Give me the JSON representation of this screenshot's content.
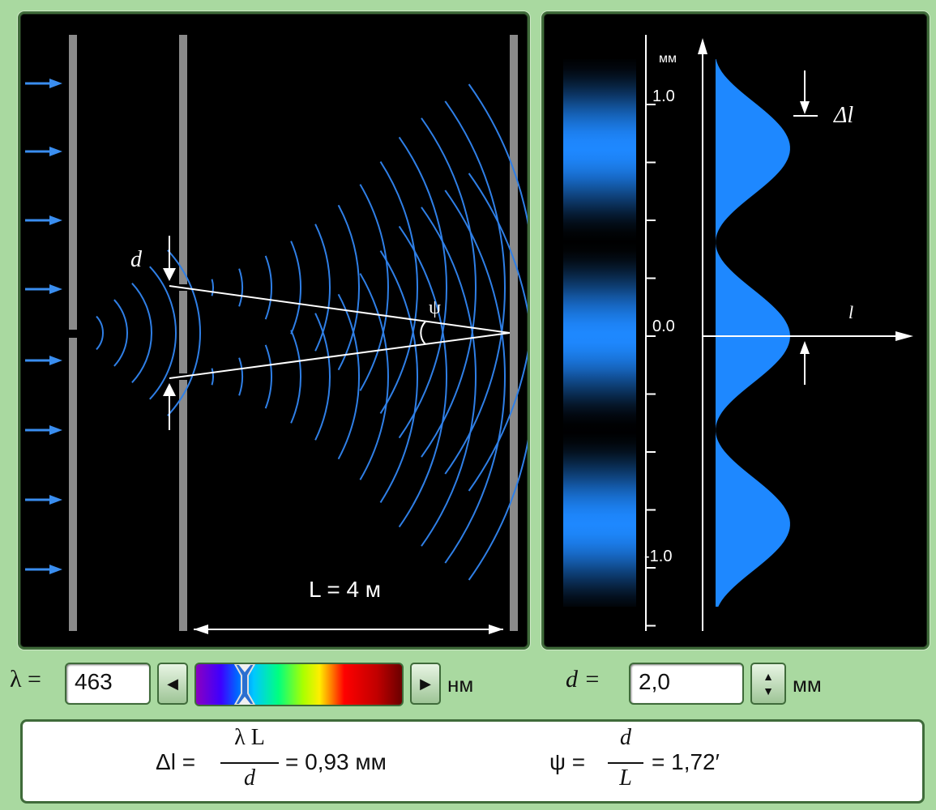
{
  "experiment": {
    "slit_label": "d",
    "angle_label": "ψ",
    "distance_label": "L = 4 м"
  },
  "graph": {
    "axis_unit": "мм",
    "x_axis_label": "l",
    "fringe_label": "Δl",
    "tick_labels": [
      "1.0",
      "0.0",
      "-1.0"
    ]
  },
  "controls": {
    "wavelength_label": "λ =",
    "wavelength_value": "463",
    "wavelength_unit": "нм",
    "slit_label": "d =",
    "slit_value": "2,0",
    "slit_unit": "мм"
  },
  "formula": {
    "fringe_lhs": "Δl =",
    "fringe_num": "λ L",
    "fringe_den": "d",
    "fringe_result": "= 0,93 мм",
    "angle_lhs": "ψ =",
    "angle_num": "d",
    "angle_den": "L",
    "angle_result": "= 1,72′"
  },
  "colors": {
    "wave": "#2f7fe6",
    "pattern": "#1e88ff",
    "arrow": "#3a8ef0",
    "panel_bg": "#000000",
    "frame": "#3f6b3a",
    "page_bg": "#a9d9a0"
  }
}
